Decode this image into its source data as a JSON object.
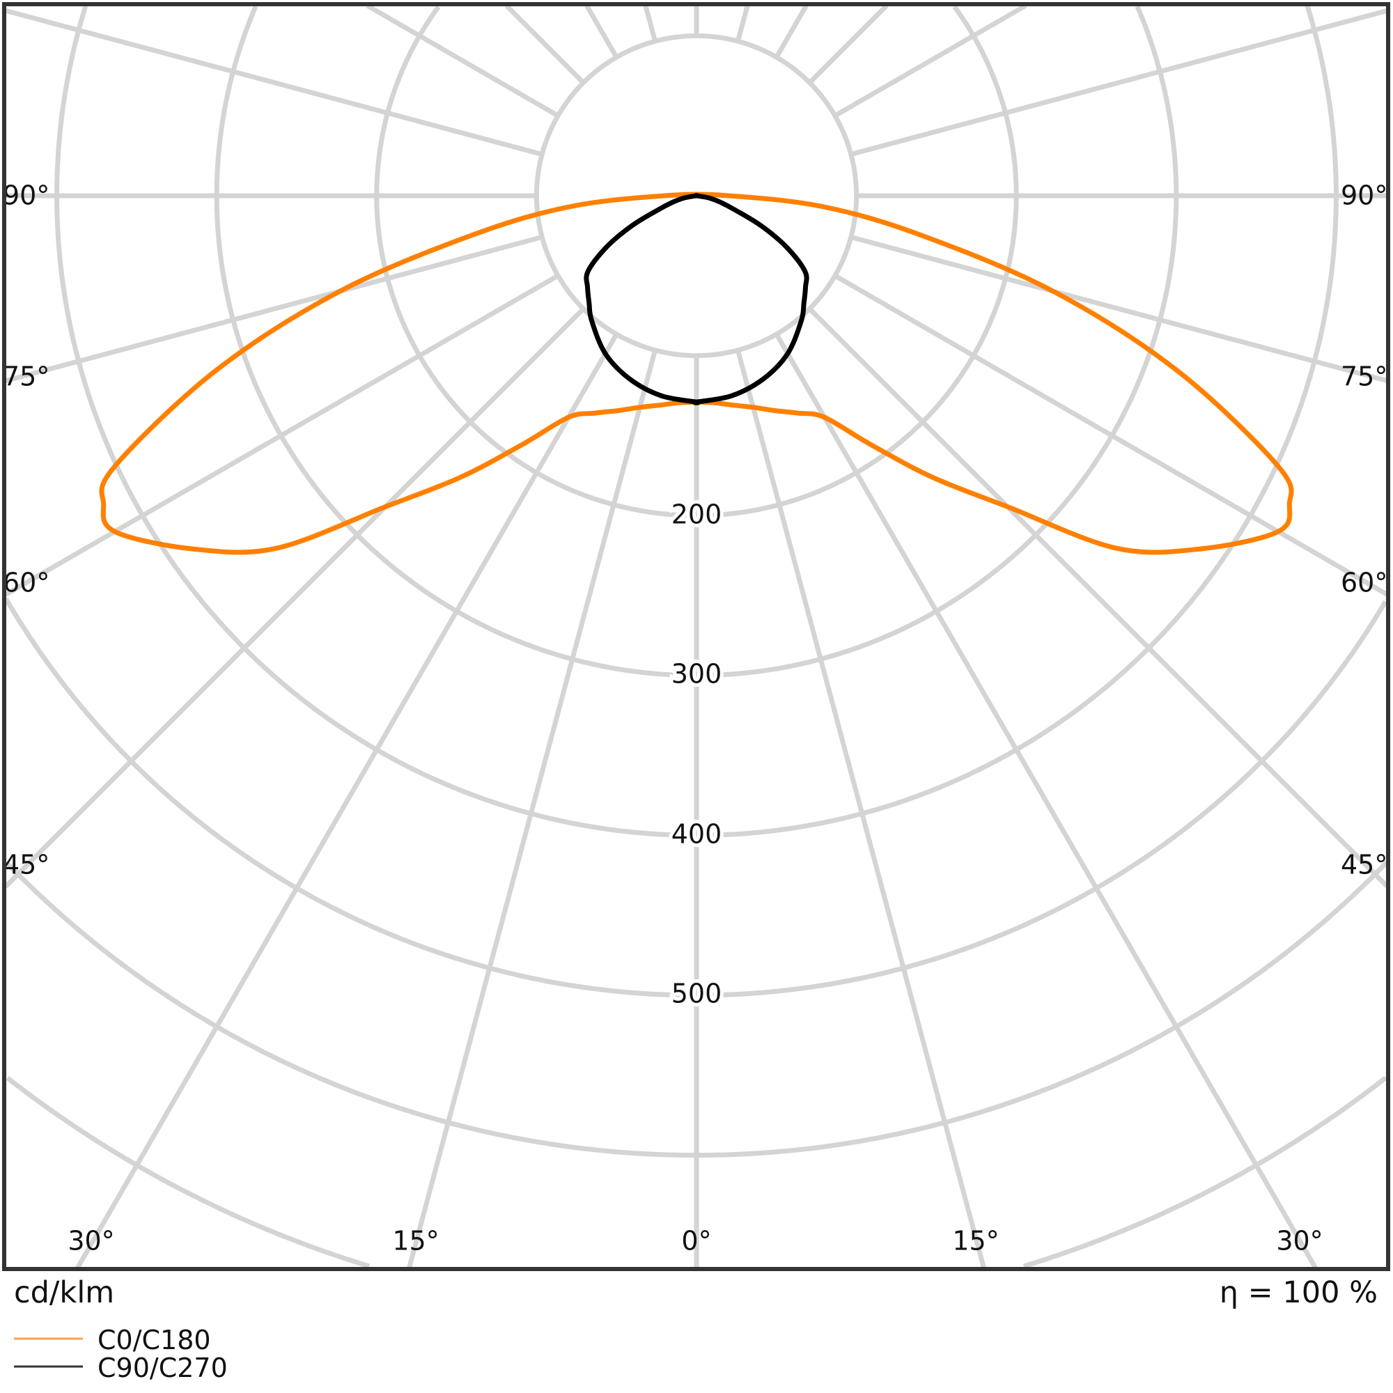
{
  "chart_data": {
    "type": "polar",
    "unit_label": "cd/klm",
    "efficiency_label": "η = 100 %",
    "radial_ticks": [
      100,
      200,
      300,
      400,
      500,
      600,
      700,
      800
    ],
    "radial_tick_labels": [
      "200",
      "300",
      "400",
      "500"
    ],
    "angle_step_deg": 15,
    "angle_labels": {
      "left": [
        "90°",
        "75°",
        "60°",
        "45°"
      ],
      "right": [
        "90°",
        "75°",
        "60°",
        "45°"
      ],
      "bottom": [
        "30°",
        "15°",
        "0°",
        "15°",
        "30°"
      ]
    },
    "grid": true,
    "legend_position": "bottom-left",
    "series": [
      {
        "name": "C0/C180",
        "color": "#ff8000",
        "gamma_deg": [
          0,
          5,
          10,
          15,
          20,
          25,
          30,
          35,
          40,
          45,
          50,
          55,
          60,
          62.5,
          65,
          70,
          75,
          80,
          85,
          90
        ],
        "values": [
          129,
          130,
          133,
          137,
          143,
          150,
          160,
          190,
          230,
          275,
          343,
          385,
          420,
          418,
          402,
          320,
          231,
          143,
          80,
          20
        ]
      },
      {
        "name": "C90/C270",
        "color": "#000000",
        "gamma_deg": [
          0,
          10,
          20,
          30,
          40,
          45,
          50,
          55,
          60,
          65,
          70,
          75,
          80,
          90
        ],
        "values": [
          129,
          127,
          122,
          114,
          102,
          95,
          89,
          83,
          66,
          45,
          25,
          15,
          8,
          0
        ]
      }
    ]
  }
}
